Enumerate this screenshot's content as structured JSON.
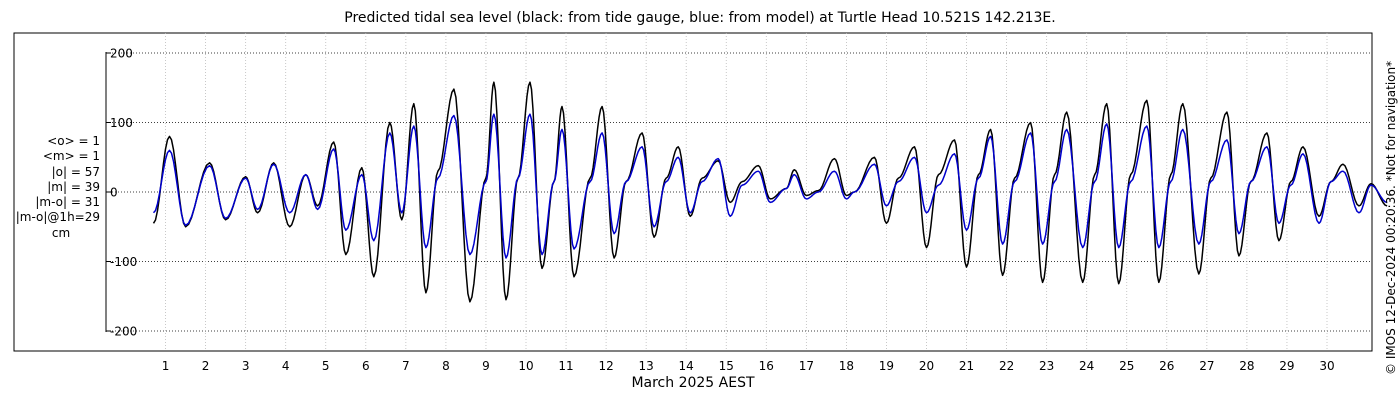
{
  "chart_data": {
    "type": "line",
    "title": "Predicted tidal sea level (black: from tide gauge, blue: from model) at Turtle Head 10.521S 142.213E.",
    "xlabel": "March 2025 AEST",
    "ylabel": "",
    "x_ticks": [
      "1",
      "2",
      "3",
      "4",
      "5",
      "6",
      "7",
      "8",
      "9",
      "10",
      "11",
      "12",
      "13",
      "14",
      "15",
      "16",
      "17",
      "18",
      "19",
      "20",
      "21",
      "22",
      "23",
      "24",
      "25",
      "26",
      "27",
      "28",
      "29",
      "30"
    ],
    "y_ticks": [
      "200",
      "100",
      "0",
      "-100",
      "-200"
    ],
    "xlim_days": [
      0.3,
      31.3
    ],
    "ylim": [
      -220,
      220
    ],
    "grid": true,
    "series": [
      {
        "color": "#000000",
        "peaks": [
          [
            0.4,
            -45
          ],
          [
            0.8,
            80
          ],
          [
            1.2,
            -50
          ],
          [
            1.8,
            42
          ],
          [
            2.2,
            -40
          ],
          [
            2.7,
            22
          ],
          [
            3.0,
            -30
          ],
          [
            3.4,
            42
          ],
          [
            3.8,
            -50
          ],
          [
            4.2,
            25
          ],
          [
            4.5,
            -20
          ],
          [
            4.9,
            72
          ],
          [
            5.2,
            -90
          ],
          [
            5.6,
            35
          ],
          [
            5.9,
            -122
          ],
          [
            6.3,
            100
          ],
          [
            6.6,
            -40
          ],
          [
            6.9,
            127
          ],
          [
            7.2,
            -145
          ],
          [
            7.5,
            30
          ],
          [
            7.9,
            148
          ],
          [
            8.3,
            -158
          ],
          [
            8.7,
            20
          ],
          [
            8.9,
            158
          ],
          [
            9.2,
            -155
          ],
          [
            9.5,
            20
          ],
          [
            9.8,
            158
          ],
          [
            10.1,
            -110
          ],
          [
            10.4,
            15
          ],
          [
            10.6,
            123
          ],
          [
            10.9,
            -122
          ],
          [
            11.3,
            20
          ],
          [
            11.6,
            123
          ],
          [
            11.9,
            -95
          ],
          [
            12.2,
            15
          ],
          [
            12.6,
            85
          ],
          [
            12.9,
            -65
          ],
          [
            13.2,
            20
          ],
          [
            13.5,
            65
          ],
          [
            13.8,
            -35
          ],
          [
            14.1,
            20
          ],
          [
            14.5,
            45
          ],
          [
            14.8,
            -15
          ],
          [
            15.1,
            15
          ],
          [
            15.5,
            38
          ],
          [
            15.8,
            -10
          ],
          [
            16.2,
            5
          ],
          [
            16.4,
            32
          ],
          [
            16.7,
            -5
          ],
          [
            17.0,
            2
          ],
          [
            17.4,
            48
          ],
          [
            17.7,
            -5
          ],
          [
            17.9,
            0
          ],
          [
            18.4,
            50
          ],
          [
            18.7,
            -45
          ],
          [
            19.0,
            20
          ],
          [
            19.4,
            65
          ],
          [
            19.7,
            -80
          ],
          [
            20.0,
            25
          ],
          [
            20.4,
            75
          ],
          [
            20.7,
            -108
          ],
          [
            21.0,
            25
          ],
          [
            21.3,
            90
          ],
          [
            21.6,
            -120
          ],
          [
            21.9,
            20
          ],
          [
            22.3,
            100
          ],
          [
            22.6,
            -130
          ],
          [
            22.9,
            25
          ],
          [
            23.2,
            115
          ],
          [
            23.6,
            -130
          ],
          [
            23.9,
            25
          ],
          [
            24.2,
            127
          ],
          [
            24.5,
            -132
          ],
          [
            24.8,
            25
          ],
          [
            25.2,
            132
          ],
          [
            25.5,
            -130
          ],
          [
            25.8,
            25
          ],
          [
            26.1,
            127
          ],
          [
            26.5,
            -118
          ],
          [
            26.8,
            20
          ],
          [
            27.2,
            115
          ],
          [
            27.5,
            -92
          ],
          [
            27.8,
            15
          ],
          [
            28.2,
            85
          ],
          [
            28.5,
            -70
          ],
          [
            28.8,
            15
          ],
          [
            29.1,
            65
          ],
          [
            29.5,
            -35
          ],
          [
            29.8,
            15
          ],
          [
            30.1,
            40
          ],
          [
            30.5,
            -20
          ],
          [
            30.8,
            12
          ],
          [
            31.2,
            -20
          ]
        ]
      },
      {
        "color": "#0000cc",
        "peaks": [
          [
            0.4,
            -30
          ],
          [
            0.8,
            60
          ],
          [
            1.2,
            -48
          ],
          [
            1.8,
            38
          ],
          [
            2.2,
            -38
          ],
          [
            2.7,
            20
          ],
          [
            3.0,
            -25
          ],
          [
            3.4,
            40
          ],
          [
            3.8,
            -30
          ],
          [
            4.2,
            25
          ],
          [
            4.5,
            -25
          ],
          [
            4.9,
            62
          ],
          [
            5.2,
            -55
          ],
          [
            5.6,
            25
          ],
          [
            5.9,
            -70
          ],
          [
            6.3,
            85
          ],
          [
            6.6,
            -30
          ],
          [
            6.9,
            95
          ],
          [
            7.2,
            -80
          ],
          [
            7.5,
            20
          ],
          [
            7.9,
            110
          ],
          [
            8.3,
            -90
          ],
          [
            8.7,
            15
          ],
          [
            8.9,
            112
          ],
          [
            9.2,
            -95
          ],
          [
            9.5,
            20
          ],
          [
            9.8,
            112
          ],
          [
            10.1,
            -90
          ],
          [
            10.4,
            15
          ],
          [
            10.6,
            90
          ],
          [
            10.9,
            -82
          ],
          [
            11.3,
            15
          ],
          [
            11.6,
            85
          ],
          [
            11.9,
            -60
          ],
          [
            12.2,
            15
          ],
          [
            12.6,
            65
          ],
          [
            12.9,
            -50
          ],
          [
            13.2,
            15
          ],
          [
            13.5,
            50
          ],
          [
            13.8,
            -30
          ],
          [
            14.1,
            15
          ],
          [
            14.5,
            48
          ],
          [
            14.8,
            -35
          ],
          [
            15.1,
            10
          ],
          [
            15.5,
            30
          ],
          [
            15.8,
            -15
          ],
          [
            16.2,
            5
          ],
          [
            16.4,
            25
          ],
          [
            16.7,
            -10
          ],
          [
            17.0,
            0
          ],
          [
            17.4,
            30
          ],
          [
            17.7,
            -10
          ],
          [
            17.9,
            0
          ],
          [
            18.4,
            40
          ],
          [
            18.7,
            -20
          ],
          [
            19.0,
            15
          ],
          [
            19.4,
            50
          ],
          [
            19.7,
            -30
          ],
          [
            20.0,
            10
          ],
          [
            20.4,
            55
          ],
          [
            20.7,
            -55
          ],
          [
            21.0,
            20
          ],
          [
            21.3,
            80
          ],
          [
            21.6,
            -75
          ],
          [
            21.9,
            15
          ],
          [
            22.3,
            85
          ],
          [
            22.6,
            -75
          ],
          [
            22.9,
            15
          ],
          [
            23.2,
            90
          ],
          [
            23.6,
            -80
          ],
          [
            23.9,
            15
          ],
          [
            24.2,
            98
          ],
          [
            24.5,
            -80
          ],
          [
            24.8,
            15
          ],
          [
            25.2,
            95
          ],
          [
            25.5,
            -80
          ],
          [
            25.8,
            15
          ],
          [
            26.1,
            90
          ],
          [
            26.5,
            -75
          ],
          [
            26.8,
            15
          ],
          [
            27.2,
            75
          ],
          [
            27.5,
            -60
          ],
          [
            27.8,
            15
          ],
          [
            28.2,
            65
          ],
          [
            28.5,
            -45
          ],
          [
            28.8,
            10
          ],
          [
            29.1,
            55
          ],
          [
            29.5,
            -45
          ],
          [
            29.8,
            15
          ],
          [
            30.1,
            30
          ],
          [
            30.5,
            -30
          ],
          [
            30.8,
            10
          ],
          [
            31.2,
            -15
          ]
        ]
      }
    ]
  },
  "stats": {
    "o_mean": "<o> = 1",
    "m_mean": "<m> = 1",
    "o_abs": "|o| = 57",
    "m_abs": "|m| = 39",
    "mo_abs": "|m-o| = 31",
    "mo_1h": "|m-o|@1h=29",
    "unit": "cm"
  },
  "credit": "© IMOS 12-Dec-2024 00:20:36. *Not for navigation*"
}
